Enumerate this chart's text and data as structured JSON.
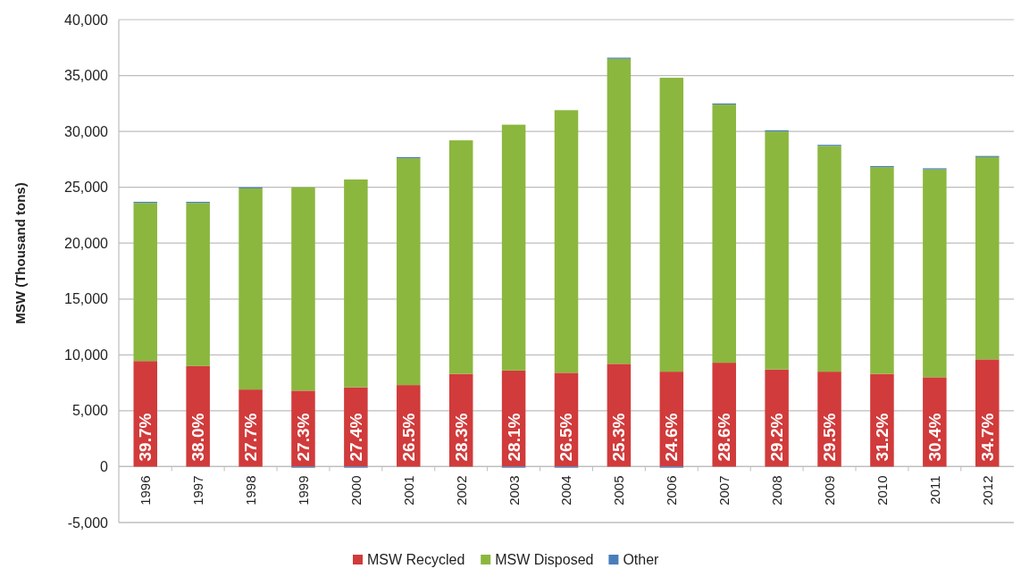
{
  "chart_data": {
    "type": "bar",
    "stacked": true,
    "ylabel": "MSW (Thousand tons)",
    "categories": [
      "1996",
      "1997",
      "1998",
      "1999",
      "2000",
      "2001",
      "2002",
      "2003",
      "2004",
      "2005",
      "2006",
      "2007",
      "2008",
      "2009",
      "2010",
      "2011",
      "2012"
    ],
    "series": [
      {
        "name": "MSW Recycled",
        "color": "#d13b3b",
        "values": [
          9450,
          9000,
          6900,
          6800,
          7100,
          7300,
          8300,
          8600,
          8400,
          9200,
          8500,
          9300,
          8700,
          8500,
          8300,
          8000,
          9600
        ]
      },
      {
        "name": "MSW Disposed",
        "color": "#8bb73e",
        "values": [
          14150,
          14600,
          18000,
          18200,
          18600,
          20300,
          20900,
          22000,
          23500,
          27300,
          26300,
          23100,
          21300,
          20200,
          18500,
          18600,
          18100
        ]
      },
      {
        "name": "Other",
        "color": "#4a7ebb",
        "values": [
          100,
          100,
          100,
          -100,
          -100,
          100,
          0,
          -100,
          -100,
          100,
          -100,
          100,
          100,
          100,
          100,
          100,
          100
        ]
      }
    ],
    "ylim": [
      -5000,
      40000
    ],
    "yticks": [
      {
        "value": -5000,
        "label": "-5,000"
      },
      0,
      {
        "value": 5000,
        "label": "5,000"
      },
      {
        "value": 10000,
        "label": "10,000"
      },
      {
        "value": 15000,
        "label": "15,000"
      },
      {
        "value": 20000,
        "label": "20,000"
      },
      {
        "value": 25000,
        "label": "25,000"
      },
      {
        "value": 30000,
        "label": "30,000"
      },
      {
        "value": 35000,
        "label": "35,000"
      },
      {
        "value": 40000,
        "label": "40,000"
      }
    ],
    "grid": "y",
    "legend": "bottom",
    "annotations": [
      "39.7%",
      "38.0%",
      "27.7%",
      "27.3%",
      "27.4%",
      "26.5%",
      "28.3%",
      "28.1%",
      "26.5%",
      "25.3%",
      "24.6%",
      "28.6%",
      "29.2%",
      "29.5%",
      "31.2%",
      "30.4%",
      "34.7%"
    ]
  }
}
